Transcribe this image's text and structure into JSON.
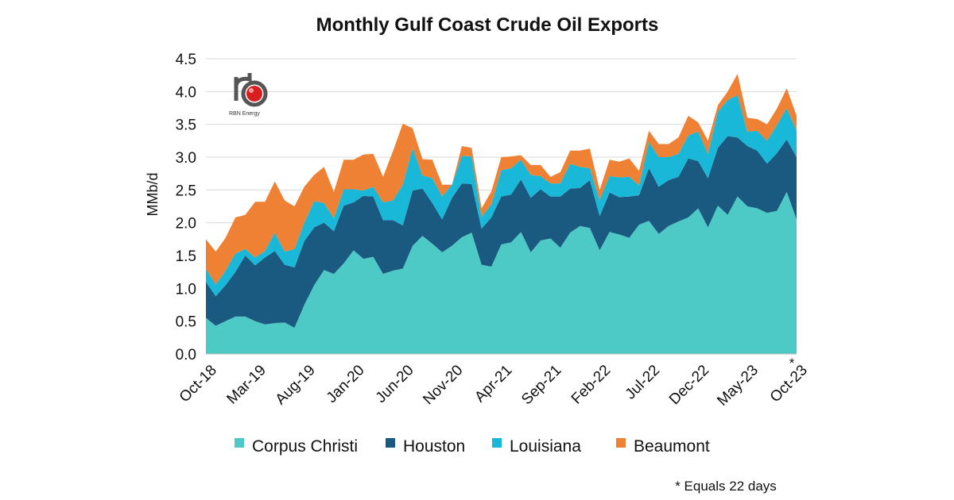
{
  "chart_data": {
    "type": "area",
    "stacked": true,
    "title": "Monthly Gulf Coast Crude Oil Exports",
    "ylabel": "MMb/d",
    "xlabel": "",
    "ylim": [
      0,
      4.5
    ],
    "yticks": [
      "0.0",
      "0.5",
      "1.0",
      "1.5",
      "2.0",
      "2.5",
      "3.0",
      "3.5",
      "4.0",
      "4.5"
    ],
    "grid": true,
    "legend_position": "bottom",
    "x": [
      "Oct-18",
      "Nov-18",
      "Dec-18",
      "Jan-19",
      "Feb-19",
      "Mar-19",
      "Apr-19",
      "May-19",
      "Jun-19",
      "Jul-19",
      "Aug-19",
      "Sep-19",
      "Oct-19",
      "Nov-19",
      "Dec-19",
      "Jan-20",
      "Feb-20",
      "Mar-20",
      "Apr-20",
      "May-20",
      "Jun-20",
      "Jul-20",
      "Aug-20",
      "Sep-20",
      "Oct-20",
      "Nov-20",
      "Dec-20",
      "Jan-21",
      "Feb-21",
      "Mar-21",
      "Apr-21",
      "May-21",
      "Jun-21",
      "Jul-21",
      "Aug-21",
      "Sep-21",
      "Oct-21",
      "Nov-21",
      "Dec-21",
      "Jan-22",
      "Feb-22",
      "Mar-22",
      "Apr-22",
      "May-22",
      "Jun-22",
      "Jul-22",
      "Aug-22",
      "Sep-22",
      "Oct-22",
      "Nov-22",
      "Dec-22",
      "Jan-23",
      "Feb-23",
      "Mar-23",
      "Apr-23",
      "May-23",
      "Jun-23",
      "Jul-23",
      "Aug-23",
      "Sep-23",
      "Oct-23"
    ],
    "x_tick_labels": [
      "Oct-18",
      "Mar-19",
      "Aug-19",
      "Jan-20",
      "Jun-20",
      "Nov-20",
      "Apr-21",
      "Sep-21",
      "Feb-22",
      "Jul-22",
      "Dec-22",
      "May-23",
      "Oct-23"
    ],
    "x_tick_every": 5,
    "series": [
      {
        "name": "Corpus Christi",
        "color": "#4ecac6",
        "values": [
          0.55,
          0.43,
          0.5,
          0.57,
          0.57,
          0.5,
          0.45,
          0.47,
          0.48,
          0.4,
          0.75,
          1.05,
          1.28,
          1.22,
          1.38,
          1.58,
          1.45,
          1.48,
          1.22,
          1.27,
          1.3,
          1.65,
          1.8,
          1.68,
          1.55,
          1.65,
          1.78,
          1.85,
          1.36,
          1.33,
          1.67,
          1.7,
          1.86,
          1.55,
          1.73,
          1.76,
          1.62,
          1.85,
          1.95,
          1.92,
          1.58,
          1.86,
          1.82,
          1.77,
          1.97,
          2.03,
          1.83,
          1.95,
          2.02,
          2.08,
          2.22,
          1.93,
          2.26,
          2.12,
          2.4,
          2.25,
          2.22,
          2.15,
          2.18,
          2.47,
          2.05
        ]
      },
      {
        "name": "Houston",
        "color": "#1b5a80",
        "values": [
          0.55,
          0.45,
          0.55,
          0.68,
          0.93,
          0.85,
          1.02,
          1.1,
          0.88,
          0.92,
          0.97,
          0.88,
          0.72,
          0.65,
          0.88,
          0.73,
          0.96,
          0.92,
          0.82,
          0.77,
          0.66,
          0.84,
          0.72,
          0.62,
          0.5,
          0.73,
          0.82,
          0.74,
          0.55,
          0.75,
          0.73,
          0.73,
          0.8,
          0.83,
          0.78,
          0.64,
          0.78,
          0.67,
          0.58,
          0.73,
          0.52,
          0.6,
          0.57,
          0.63,
          0.45,
          0.8,
          0.72,
          0.7,
          0.68,
          0.9,
          0.72,
          0.75,
          0.88,
          1.2,
          0.9,
          0.92,
          0.88,
          0.75,
          0.88,
          0.8,
          0.95
        ]
      },
      {
        "name": "Louisiana",
        "color": "#1ab8d8",
        "values": [
          0.2,
          0.18,
          0.22,
          0.28,
          0.1,
          0.12,
          0.1,
          0.28,
          0.2,
          0.28,
          0.28,
          0.4,
          0.3,
          0.2,
          0.25,
          0.2,
          0.08,
          0.15,
          0.27,
          0.3,
          0.62,
          0.65,
          0.2,
          0.38,
          0.35,
          0.2,
          0.42,
          0.42,
          0.18,
          0.2,
          0.4,
          0.4,
          0.3,
          0.35,
          0.2,
          0.2,
          0.2,
          0.38,
          0.32,
          0.18,
          0.25,
          0.25,
          0.3,
          0.3,
          0.15,
          0.4,
          0.45,
          0.35,
          0.35,
          0.35,
          0.45,
          0.37,
          0.55,
          0.55,
          0.65,
          0.22,
          0.3,
          0.35,
          0.43,
          0.48,
          0.4
        ]
      },
      {
        "name": "Beaumont",
        "color": "#ee8133",
        "values": [
          0.45,
          0.5,
          0.5,
          0.55,
          0.52,
          0.85,
          0.75,
          0.78,
          0.78,
          0.65,
          0.55,
          0.4,
          0.55,
          0.4,
          0.45,
          0.45,
          0.55,
          0.5,
          0.39,
          0.75,
          0.93,
          0.3,
          0.25,
          0.28,
          0.18,
          0.0,
          0.15,
          0.13,
          0.13,
          0.2,
          0.2,
          0.18,
          0.07,
          0.15,
          0.17,
          0.1,
          0.17,
          0.2,
          0.25,
          0.3,
          0.15,
          0.25,
          0.24,
          0.28,
          0.22,
          0.17,
          0.2,
          0.2,
          0.25,
          0.3,
          0.14,
          0.2,
          0.1,
          0.13,
          0.32,
          0.21,
          0.18,
          0.25,
          0.25,
          0.3,
          0.23
        ]
      }
    ],
    "annotations": [
      "*",
      "* Equals 22 days"
    ],
    "logo_text": "RBN Energy"
  }
}
